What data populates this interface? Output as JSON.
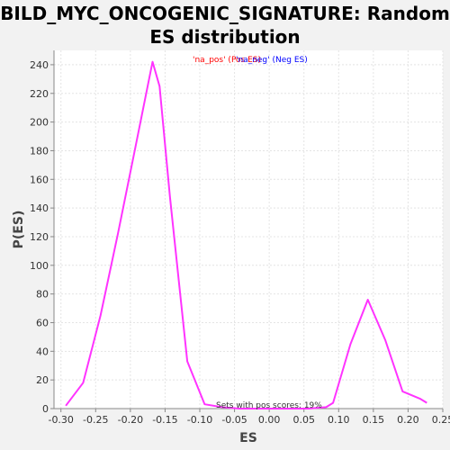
{
  "chart_data": {
    "type": "line",
    "title_line1": "BILD_MYC_ONCOGENIC_SIGNATURE: Random",
    "title_line2": "ES distribution",
    "xlabel": "ES",
    "ylabel": "P(ES)",
    "xlim": [
      -0.31,
      0.25
    ],
    "ylim": [
      0,
      250
    ],
    "xticks": [
      "-0.30",
      "-0.25",
      "-0.20",
      "-0.15",
      "-0.10",
      "-0.05",
      "0.00",
      "0.05",
      "0.10",
      "0.15",
      "0.20",
      "0.25"
    ],
    "xtick_values": [
      -0.3,
      -0.25,
      -0.2,
      -0.15,
      -0.1,
      -0.05,
      0.0,
      0.05,
      0.1,
      0.15,
      0.2,
      0.25
    ],
    "yticks": [
      "0",
      "20",
      "40",
      "60",
      "80",
      "100",
      "120",
      "140",
      "160",
      "180",
      "200",
      "220",
      "240"
    ],
    "ytick_values": [
      0,
      20,
      40,
      60,
      80,
      100,
      120,
      140,
      160,
      180,
      200,
      220,
      240
    ],
    "legend": {
      "pos_label": "'na_pos' (Pos ES)",
      "neg_label": "'na_neg' (Neg ES)",
      "pos_color": "#ff0000",
      "neg_color": "#0000ff"
    },
    "annotation": "Sets with pos scores: 19%",
    "grid": true,
    "series": [
      {
        "color": "#ff33ff",
        "x": [
          -0.293,
          -0.268,
          -0.243,
          -0.218,
          -0.193,
          -0.168,
          -0.158,
          -0.143,
          -0.118,
          -0.093,
          -0.068,
          -0.043,
          -0.018,
          0.007,
          0.032,
          0.057,
          0.082,
          0.092,
          0.117,
          0.142,
          0.167,
          0.192,
          0.217,
          0.227
        ],
        "y": [
          2,
          18,
          65,
          122,
          182,
          242,
          225,
          148,
          33,
          3,
          1,
          0,
          0,
          0,
          0,
          0,
          1,
          4,
          45,
          76,
          48,
          12,
          7,
          4
        ]
      }
    ]
  }
}
